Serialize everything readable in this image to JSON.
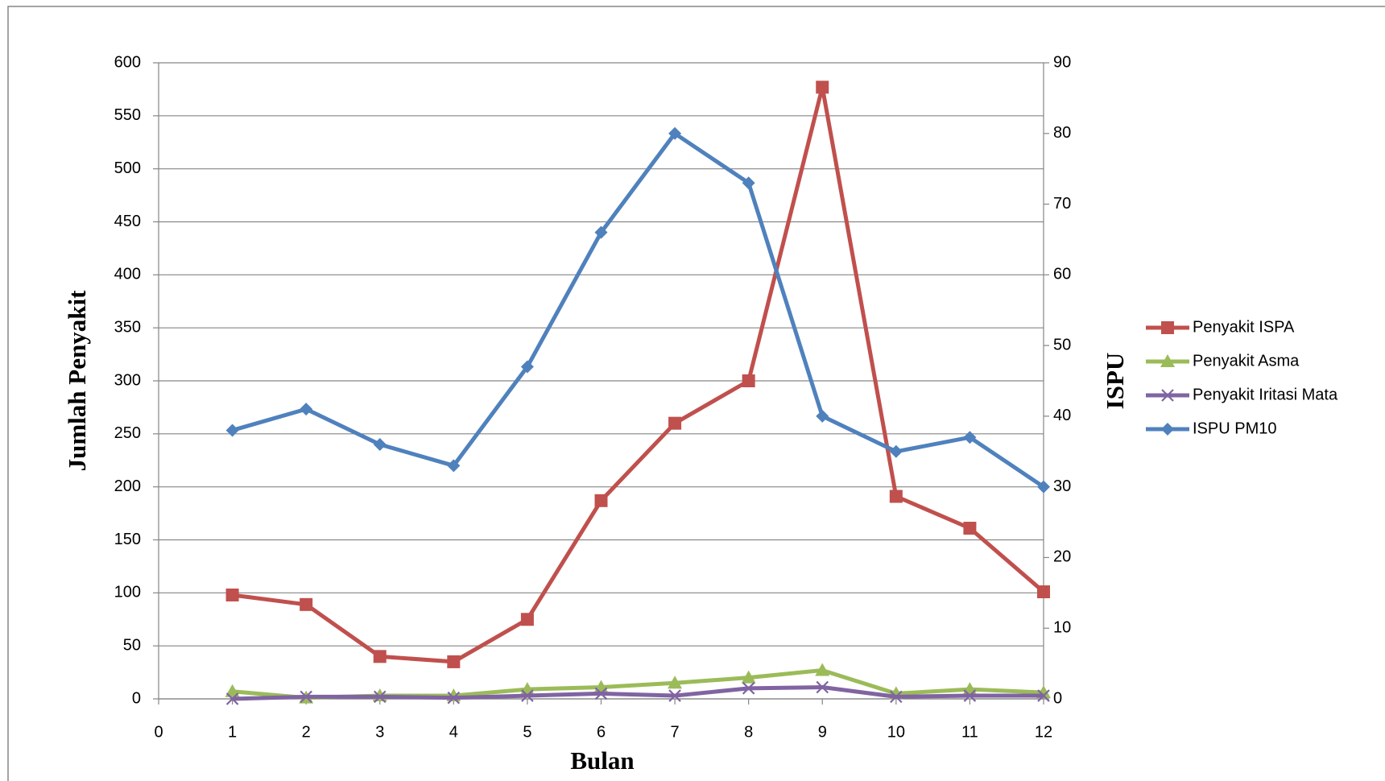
{
  "chart_data": {
    "type": "line",
    "x_label": "Bulan",
    "y_label": "Jumlah Penyakit",
    "y2_label": "ISPU",
    "x": [
      1,
      2,
      3,
      4,
      5,
      6,
      7,
      8,
      9,
      10,
      11,
      12
    ],
    "xlim": [
      0,
      12
    ],
    "xticks": [
      0,
      1,
      2,
      3,
      4,
      5,
      6,
      7,
      8,
      9,
      10,
      11,
      12
    ],
    "ylim": [
      0,
      600
    ],
    "yticks": [
      0,
      50,
      100,
      150,
      200,
      250,
      300,
      350,
      400,
      450,
      500,
      550,
      600
    ],
    "y2lim": [
      0,
      90
    ],
    "y2ticks": [
      0,
      10,
      20,
      30,
      40,
      50,
      60,
      70,
      80,
      90
    ],
    "grid": true,
    "legend": "right",
    "series": [
      {
        "name": "Penyakit ISPA",
        "color": "#c0504d",
        "marker": "square",
        "values": [
          98,
          89,
          40,
          35,
          75,
          187,
          260,
          300,
          577,
          191,
          161,
          101
        ]
      },
      {
        "name": "Penyakit Asma",
        "color": "#9bbb59",
        "marker": "triangle",
        "values": [
          7,
          1,
          3,
          3,
          9,
          11,
          15,
          20,
          27,
          5,
          9,
          6
        ]
      },
      {
        "name": "Penyakit Iritasi Mata",
        "color": "#8064a2",
        "marker": "x",
        "values": [
          0,
          2,
          2,
          1,
          3,
          5,
          3,
          10,
          11,
          2,
          3,
          3
        ]
      },
      {
        "name": "ISPU PM10",
        "color": "#4f81bd",
        "marker": "diamond",
        "axis": "y2",
        "values": [
          38,
          41,
          36,
          33,
          47,
          66,
          80,
          73,
          40,
          35,
          37,
          30
        ]
      }
    ]
  }
}
